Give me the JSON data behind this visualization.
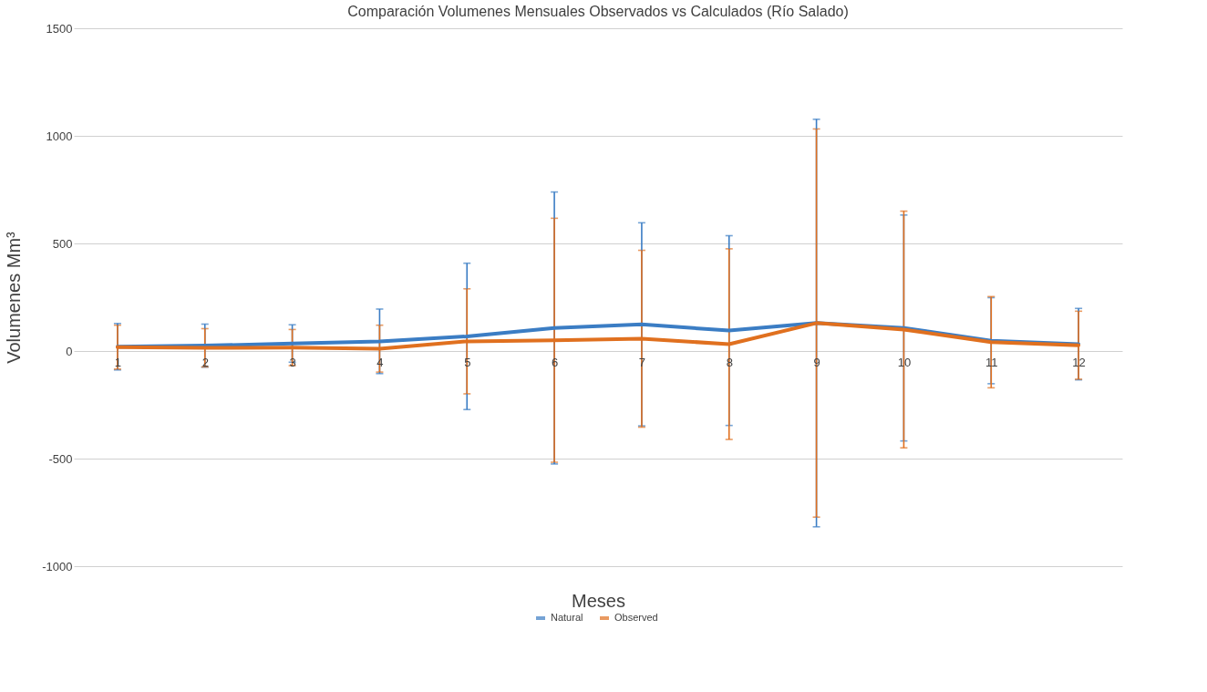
{
  "chart_data": {
    "type": "line",
    "title": "Comparación Volumenes Mensuales Observados vs Calculados (Río Salado)",
    "xlabel": "Meses",
    "ylabel": "Volumenes Mm³",
    "categories": [
      "1",
      "2",
      "3",
      "4",
      "5",
      "6",
      "7",
      "8",
      "9",
      "10",
      "11",
      "12"
    ],
    "series": [
      {
        "name": "Natural",
        "color": "#3b7dc4",
        "values": [
          20,
          25,
          35,
          45,
          68,
          107,
          124,
          95,
          130,
          107,
          48,
          32
        ],
        "errors": [
          108,
          100,
          87,
          150,
          340,
          632,
          472,
          441,
          947,
          525,
          200,
          166
        ]
      },
      {
        "name": "Observed",
        "color": "#e0701f",
        "values": [
          18,
          15,
          16,
          11,
          45,
          50,
          57,
          32,
          130,
          100,
          41,
          27
        ],
        "errors": [
          102,
          89,
          84,
          109,
          244,
          567,
          411,
          443,
          902,
          550,
          212,
          158
        ]
      }
    ],
    "ylim": [
      -1000,
      1500
    ],
    "yticks": [
      -1000,
      -500,
      0,
      500,
      1000,
      1500
    ],
    "grid": "y",
    "legend": "bottom",
    "marker": "none",
    "line_style": "solid"
  }
}
